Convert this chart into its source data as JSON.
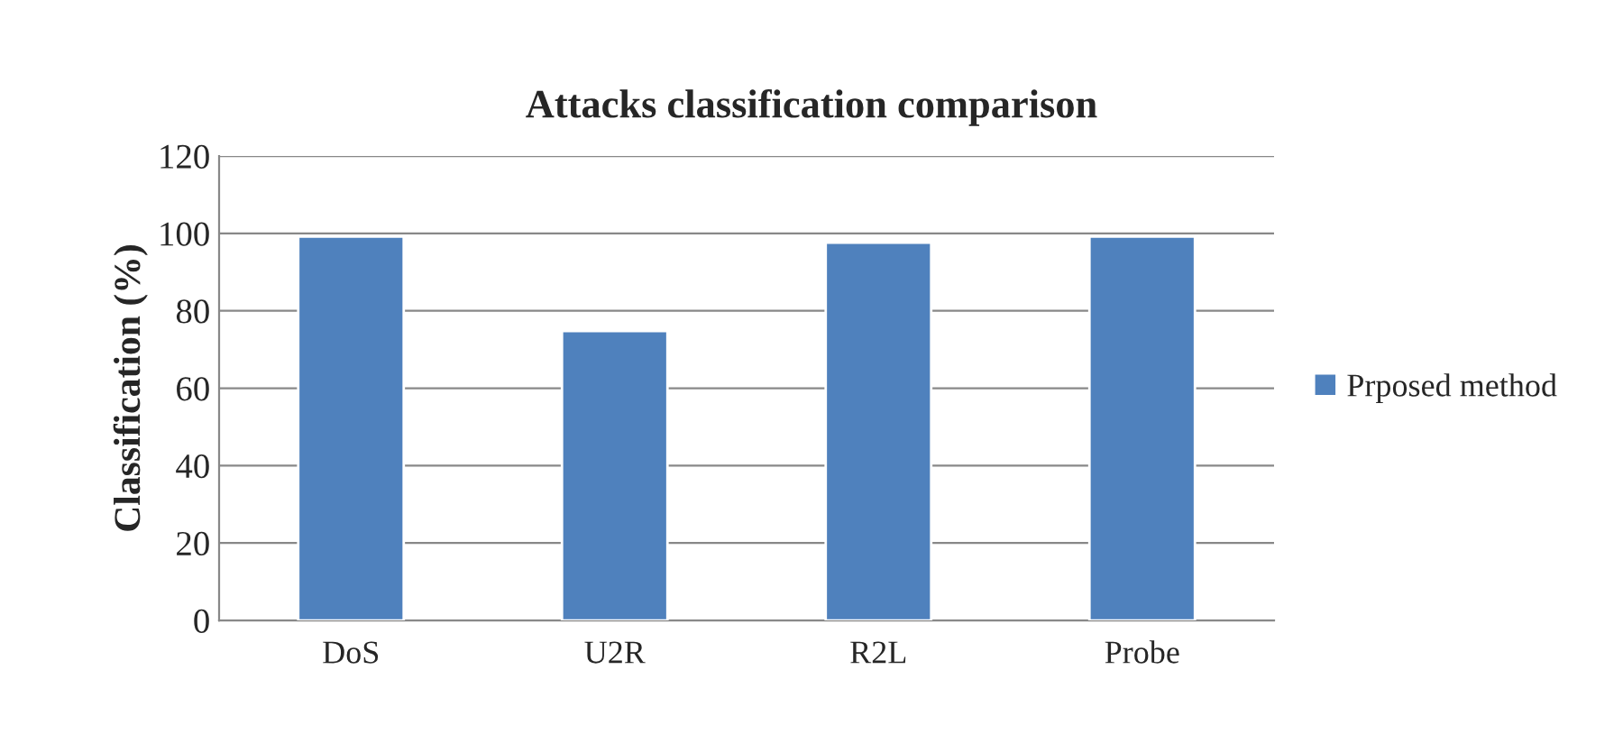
{
  "chart_data": {
    "type": "bar",
    "title": "Attacks classification comparison",
    "ylabel": "Classification (%)",
    "categories": [
      "DoS",
      "U2R",
      "R2L",
      "Probe"
    ],
    "series": [
      {
        "name": "Prposed method",
        "color": "#4f81bd",
        "values": [
          99.2,
          74.8,
          97.6,
          99.2
        ]
      }
    ],
    "ylim": [
      0,
      120
    ],
    "yticks": [
      0,
      20,
      40,
      60,
      80,
      100,
      120
    ],
    "grid": "y",
    "legend": "right"
  }
}
